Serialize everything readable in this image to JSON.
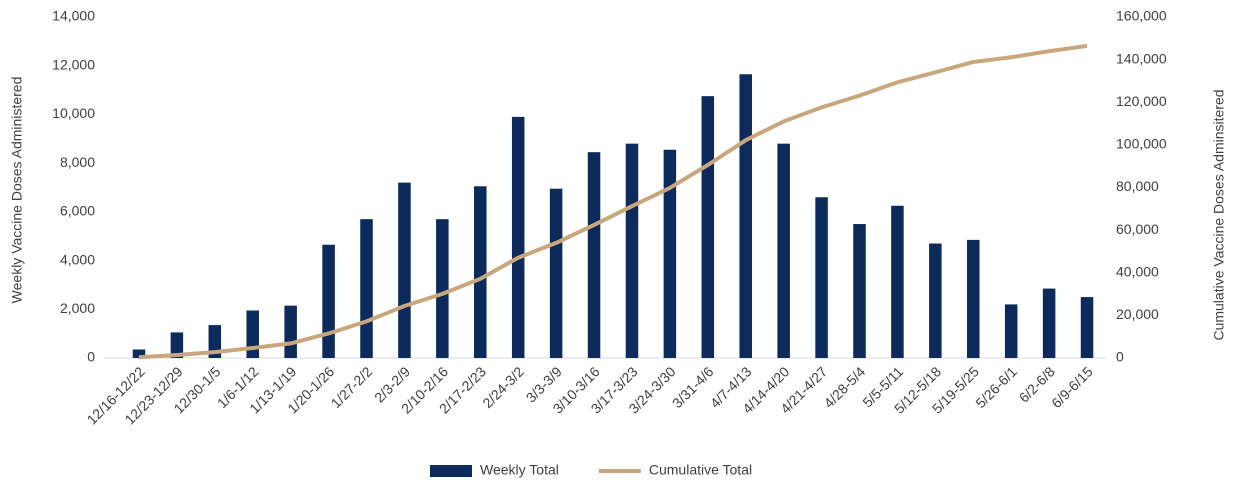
{
  "chart_data": {
    "type": "bar_line",
    "categories": [
      "12/16-12/22",
      "12/23-12/29",
      "12/30-1/5",
      "1/6-1/12",
      "1/13-1/19",
      "1/20-1/26",
      "1/27-2/2",
      "2/3-2/9",
      "2/10-2/16",
      "2/17-2/23",
      "2/24-3/2",
      "3/3-3/9",
      "3/10-3/16",
      "3/17-3/23",
      "3/24-3/30",
      "3/31-4/6",
      "4/7-4/13",
      "4/14-4/20",
      "4/21-4/27",
      "4/28-5/4",
      "5/5-5/11",
      "5/12-5/18",
      "5/19-5/25",
      "5/26-6/1",
      "6/2-6/8",
      "6/9-6/15"
    ],
    "series": [
      {
        "name": "Weekly Total",
        "type": "bar",
        "color": "#0c2a5b",
        "values": [
          350,
          1050,
          1350,
          1950,
          2150,
          4650,
          5700,
          7200,
          5700,
          7050,
          9900,
          6950,
          8450,
          8800,
          8550,
          10750,
          11650,
          8800,
          6600,
          5500,
          6250,
          4700,
          4850,
          2200,
          2850,
          2500
        ]
      },
      {
        "name": "Cumulative Total",
        "type": "line",
        "axis": "y2",
        "color": "#c9a77c",
        "values": [
          350,
          1400,
          2750,
          4700,
          6850,
          11500,
          17200,
          24400,
          30100,
          37150,
          47050,
          54000,
          62450,
          71250,
          79800,
          90550,
          102200,
          111000,
          117600,
          123100,
          129350,
          134050,
          138900,
          141100,
          143950,
          146450
        ]
      }
    ],
    "ylabel": "Weekly Vaccine Doses Administered",
    "y2label": "Cumulative Vaccine Doses Adminsitered",
    "ylim": [
      0,
      14000
    ],
    "yticks": [
      0,
      {
        "value": 2000,
        "label": "2,000"
      },
      {
        "value": 4000,
        "label": "4,000"
      },
      {
        "value": 6000,
        "label": "6,000"
      },
      {
        "value": 8000,
        "label": "8,000"
      },
      {
        "value": 10000,
        "label": "10,000"
      },
      {
        "value": 12000,
        "label": "12,000"
      },
      {
        "value": 14000,
        "label": "14,000"
      }
    ],
    "y2lim": [
      0,
      160000
    ],
    "y2ticks": [
      0,
      {
        "value": 20000,
        "label": "20,000"
      },
      {
        "value": 40000,
        "label": "40,000"
      },
      {
        "value": 60000,
        "label": "60,000"
      },
      {
        "value": 80000,
        "label": "80,000"
      },
      {
        "value": 100000,
        "label": "100,000"
      },
      {
        "value": 120000,
        "label": "120,000"
      },
      {
        "value": 140000,
        "label": "140,000"
      },
      {
        "value": 160000,
        "label": "160,000"
      }
    ],
    "legend": "bottom"
  }
}
